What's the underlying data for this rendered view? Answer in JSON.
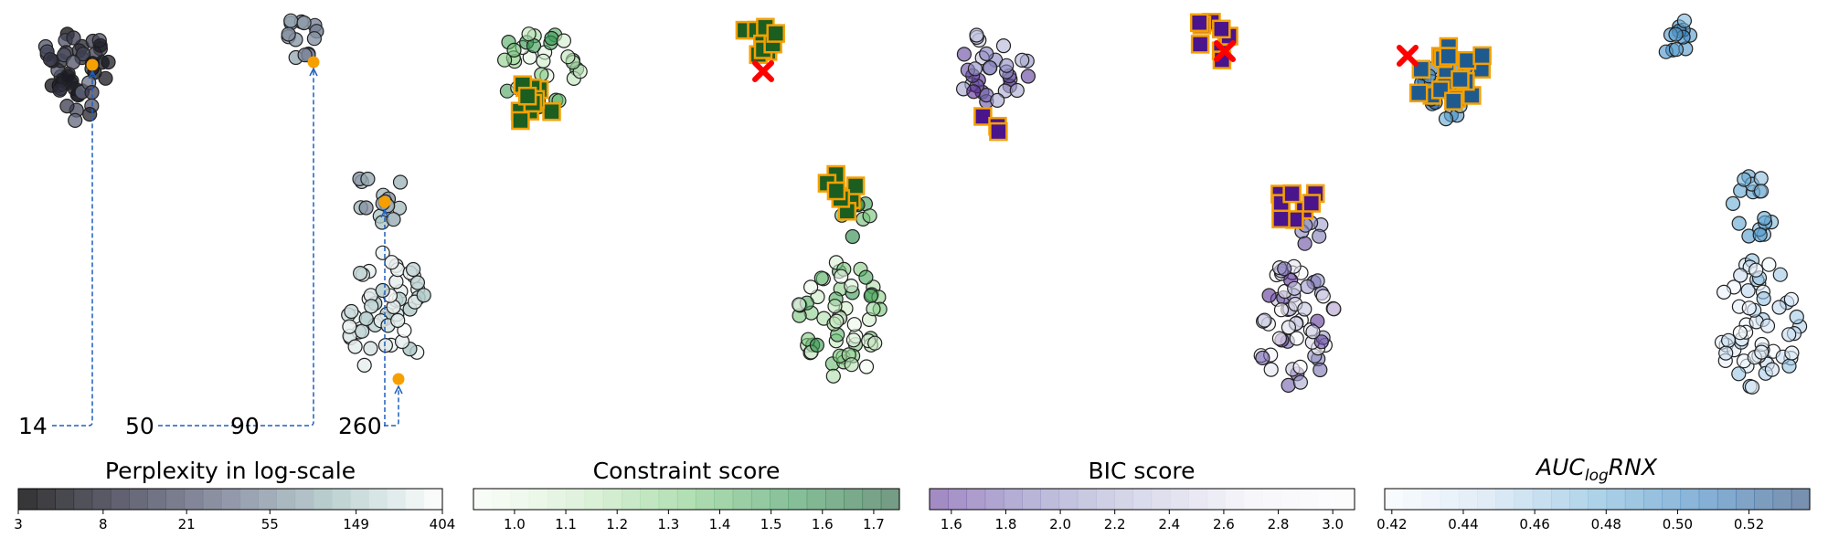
{
  "chart_data": [
    {
      "type": "scatter",
      "panel": "perplexity",
      "description_of_points": "embedded_points_colored_by_perplexity",
      "colormap": "bone",
      "colorbar": {
        "title": "Perplexity in log-scale",
        "ticks": [
          "3",
          "8",
          "21",
          "55",
          "149",
          "404"
        ],
        "range": [
          3,
          404
        ],
        "scale": "log"
      },
      "bottom_labels": [
        "14",
        "50",
        "90",
        "260"
      ],
      "highlight_color": "#f5a000",
      "arrow_color": "#1f5fbf"
    },
    {
      "type": "scatter",
      "panel": "constraint",
      "colormap": "greens",
      "colorbar": {
        "title": "Constraint score",
        "ticks": [
          "1.0",
          "1.1",
          "1.2",
          "1.3",
          "1.4",
          "1.5",
          "1.6",
          "1.7"
        ],
        "range": [
          0.92,
          1.75
        ]
      },
      "square_fill": "#1b5e20",
      "square_edge": "#f5a000",
      "marker_x_color": "#ff0000"
    },
    {
      "type": "scatter",
      "panel": "bic",
      "colormap": "purples_r",
      "colorbar": {
        "title": "BIC score",
        "ticks": [
          "1.6",
          "1.8",
          "2.0",
          "2.2",
          "2.4",
          "2.6",
          "2.8",
          "3.0"
        ],
        "range": [
          1.52,
          3.08
        ]
      },
      "square_fill": "#4a148c",
      "square_edge": "#f5a000",
      "marker_x_color": "#ff0000"
    },
    {
      "type": "scatter",
      "panel": "auc",
      "colormap": "blues",
      "colorbar": {
        "title_main": "AUC",
        "title_sub": "log",
        "title_tail": "RNX",
        "ticks": [
          "0.42",
          "0.44",
          "0.46",
          "0.48",
          "0.50",
          "0.52"
        ],
        "range": [
          0.418,
          0.537
        ]
      },
      "square_fill": "#1f5a8f",
      "square_edge": "#f5a000",
      "marker_x_color": "#ff0000"
    }
  ]
}
